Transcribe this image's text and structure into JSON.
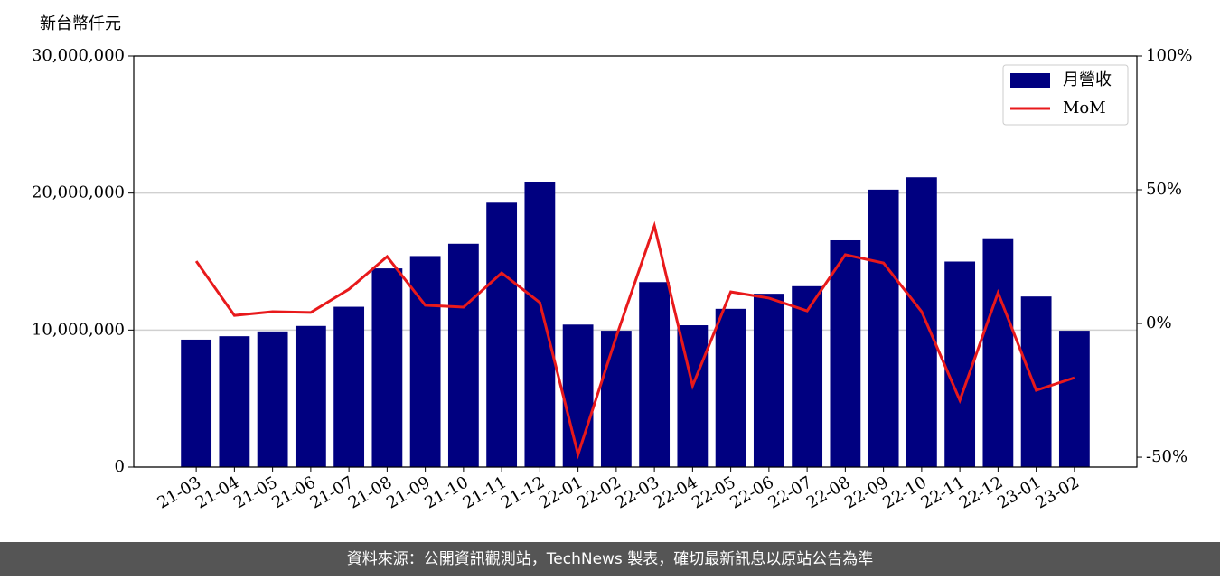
{
  "chart_data": {
    "type": "bar-line",
    "y_label": "新台幣仟元",
    "categories": [
      "21-03",
      "21-04",
      "21-05",
      "21-06",
      "21-07",
      "21-08",
      "21-09",
      "21-10",
      "21-11",
      "21-12",
      "22-01",
      "22-02",
      "22-03",
      "22-04",
      "22-05",
      "22-06",
      "22-07",
      "22-08",
      "22-09",
      "22-10",
      "22-11",
      "22-12",
      "23-01",
      "23-02"
    ],
    "series": [
      {
        "name": "月營收",
        "type": "bar",
        "color": "#000080",
        "values": [
          9300000,
          9550000,
          9900000,
          10300000,
          11700000,
          14500000,
          15400000,
          16300000,
          19300000,
          20800000,
          10400000,
          9950000,
          13500000,
          10350000,
          11550000,
          12650000,
          13200000,
          16550000,
          20250000,
          21150000,
          15000000,
          16700000,
          12450000,
          9950000
        ]
      },
      {
        "name": "MoM",
        "type": "line",
        "axis": "y2",
        "color": "#e8191b",
        "values": [
          23.3,
          3.0,
          4.4,
          4.1,
          12.8,
          25.0,
          6.8,
          6.1,
          18.9,
          7.8,
          -49.0,
          -5.0,
          36.5,
          -23.3,
          11.8,
          9.5,
          4.7,
          25.7,
          22.6,
          4.4,
          -28.7,
          11.5,
          -25.0,
          -20.3
        ]
      }
    ],
    "ylim": [
      0,
      30000000
    ],
    "yticks": [
      0,
      {
        "value": 10000000,
        "label": "10,000,000"
      },
      {
        "value": 20000000,
        "label": "20,000,000"
      },
      {
        "value": 30000000,
        "label": "30,000,000"
      }
    ],
    "y2lim": [
      -53.7,
      100
    ],
    "y2ticks": [
      {
        "value": -50,
        "label": "-50%"
      },
      {
        "value": 0,
        "label": "0%"
      },
      {
        "value": 50,
        "label": "50%"
      },
      {
        "value": 100,
        "label": "100%"
      }
    ],
    "grid": true,
    "legend": "upper right",
    "footer": "資料來源：公開資訊觀測站，TechNews 製表，確切最新訊息以原站公告為準"
  }
}
